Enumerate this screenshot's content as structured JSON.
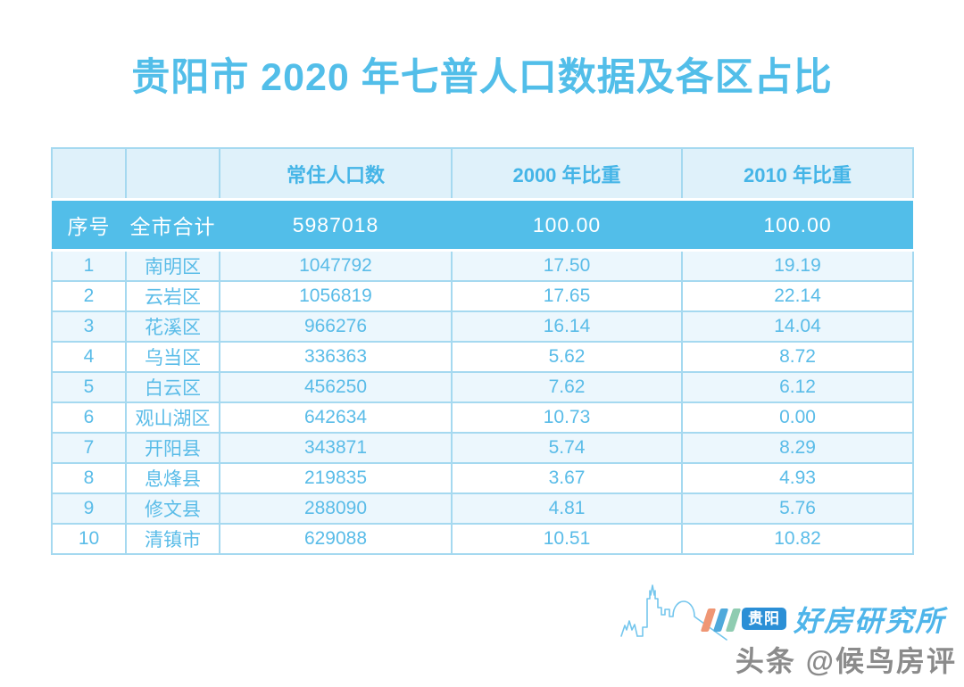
{
  "title": "贵阳市 2020 年七普人口数据及各区占比",
  "chart_data": {
    "type": "table",
    "title": "贵阳市 2020 年七普人口数据及各区占比",
    "columns": [
      "",
      "",
      "常住人口数",
      "2000 年比重",
      "2010 年比重"
    ],
    "total_row": [
      "序号",
      "全市合计",
      "5987018",
      "100.00",
      "100.00"
    ],
    "rows": [
      [
        "1",
        "南明区",
        "1047792",
        "17.50",
        "19.19"
      ],
      [
        "2",
        "云岩区",
        "1056819",
        "17.65",
        "22.14"
      ],
      [
        "3",
        "花溪区",
        "966276",
        "16.14",
        "14.04"
      ],
      [
        "4",
        "乌当区",
        "336363",
        "5.62",
        "8.72"
      ],
      [
        "5",
        "白云区",
        "456250",
        "7.62",
        "6.12"
      ],
      [
        "6",
        "观山湖区",
        "642634",
        "10.73",
        "0.00"
      ],
      [
        "7",
        "开阳县",
        "343871",
        "5.74",
        "8.29"
      ],
      [
        "8",
        "息烽县",
        "219835",
        "3.67",
        "4.93"
      ],
      [
        "9",
        "修文县",
        "288090",
        "4.81",
        "5.76"
      ],
      [
        "10",
        "清镇市",
        "629088",
        "10.51",
        "10.82"
      ]
    ]
  },
  "footer": {
    "badge_label": "贵阳",
    "brand_name": "好房研究所",
    "watermark": "头条 @候鸟房评"
  },
  "colors": {
    "accent_blue": "#52BEE9",
    "header_bg": "#DFF1FA",
    "header_text": "#45B5E7",
    "total_row_bg": "#52BEE9",
    "total_row_text": "#FFFFFF",
    "cell_text": "#5ABCE8",
    "border": "#A5D9F0",
    "row_alt_bg": "#ECF7FD",
    "badge_bg": "#2B8FD6",
    "brand_text": "#4FB5EA",
    "stripe_orange": "#EF9674",
    "stripe_blue": "#4FA9DB",
    "stripe_green": "#8FCCB1",
    "skyline_stroke": "#74C6ED",
    "watermark_gray": "#777777"
  }
}
